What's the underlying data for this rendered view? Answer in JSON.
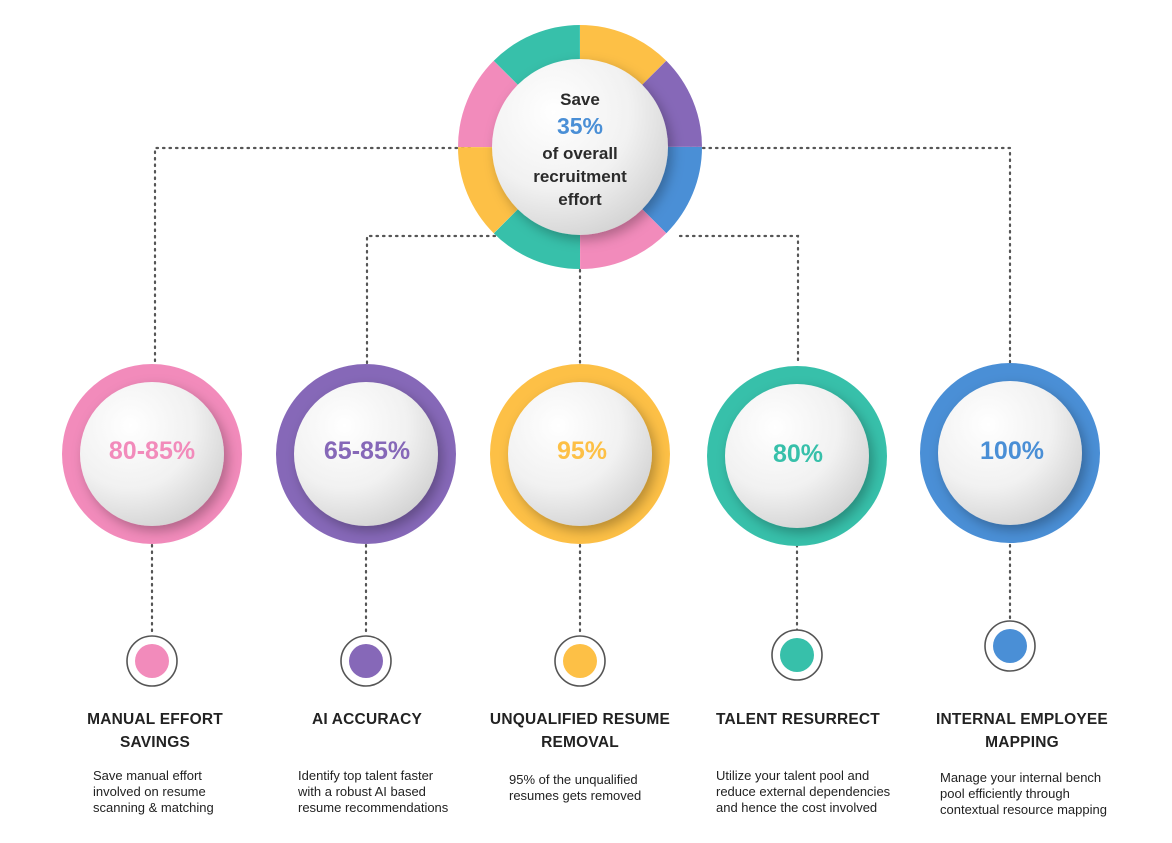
{
  "hub": {
    "line1": "Save",
    "percent": "35%",
    "line2": "of overall",
    "line3": "recruitment",
    "line4": "effort",
    "percent_color": "#4a8fd6"
  },
  "ring_colors": {
    "pink": "#f28bbb",
    "purple": "#8668b8",
    "yellow": "#fdc046",
    "teal": "#37c0aa",
    "blue": "#4a8fd6"
  },
  "items": [
    {
      "stat": "80-85%",
      "color": "#f28bbb",
      "title_1": "MANUAL EFFORT",
      "title_2": "SAVINGS",
      "desc_1": "Save manual effort",
      "desc_2": "involved on resume",
      "desc_3": "scanning & matching"
    },
    {
      "stat": "65-85%",
      "color": "#8668b8",
      "title_1": "AI ACCURACY",
      "title_2": "",
      "desc_1": "Identify top talent faster",
      "desc_2": "with a robust AI based",
      "desc_3": "resume recommendations"
    },
    {
      "stat": "95%",
      "color": "#fdc046",
      "title_1": "UNQUALIFIED RESUME",
      "title_2": "REMOVAL",
      "desc_1": "95% of the unqualified",
      "desc_2": "resumes gets removed",
      "desc_3": ""
    },
    {
      "stat": "80%",
      "color": "#37c0aa",
      "title_1": "TALENT RESURRECT",
      "title_2": "",
      "desc_1": "Utilize your talent pool and",
      "desc_2": "reduce external dependencies",
      "desc_3": "and hence the cost involved"
    },
    {
      "stat": "100%",
      "color": "#4a8fd6",
      "title_1": "INTERNAL EMPLOYEE",
      "title_2": "MAPPING",
      "desc_1": "Manage your internal bench",
      "desc_2": "pool efficiently through",
      "desc_3": "contextual resource mapping"
    }
  ]
}
